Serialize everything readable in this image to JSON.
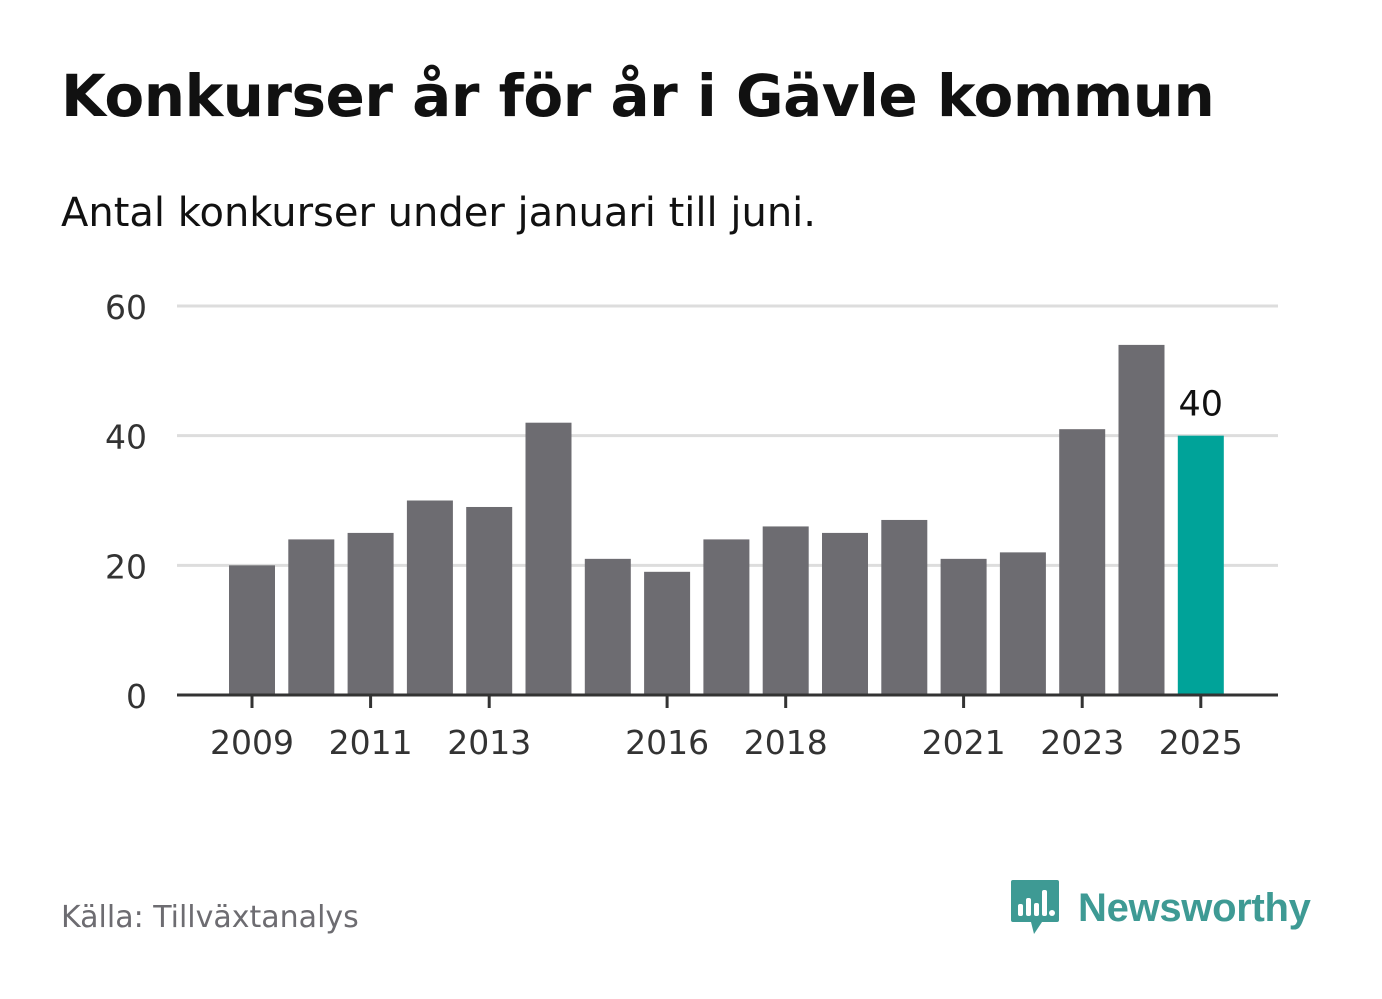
{
  "header": {
    "title": "Konkurser år för år i Gävle kommun",
    "subtitle": "Antal konkurser under januari till juni."
  },
  "footer": {
    "source": "Källa: Tillväxtanalys",
    "brand_name": "Newsworthy",
    "brand_icon": "newsworthy-chart-bubble-icon"
  },
  "colors": {
    "bar": "#6d6c71",
    "highlight": "#00a399",
    "grid": "#dddddd",
    "axis": "#333333",
    "brand": "#3e9a94"
  },
  "chart_data": {
    "type": "bar",
    "categories": [
      "2009",
      "2010",
      "2011",
      "2012",
      "2013",
      "2014",
      "2015",
      "2016",
      "2017",
      "2018",
      "2019",
      "2020",
      "2021",
      "2022",
      "2023",
      "2024",
      "2025"
    ],
    "values": [
      20,
      24,
      25,
      30,
      29,
      42,
      21,
      19,
      24,
      26,
      25,
      27,
      21,
      22,
      41,
      54,
      40
    ],
    "x_tick_labels": [
      "2009",
      "2011",
      "2013",
      "2016",
      "2018",
      "2021",
      "2023",
      "2025"
    ],
    "y_ticks": [
      0,
      20,
      40,
      60
    ],
    "ylim": [
      0,
      60
    ],
    "grid": true,
    "highlight_category": "2025",
    "highlight_label": "40",
    "xlabel": "",
    "ylabel": ""
  }
}
